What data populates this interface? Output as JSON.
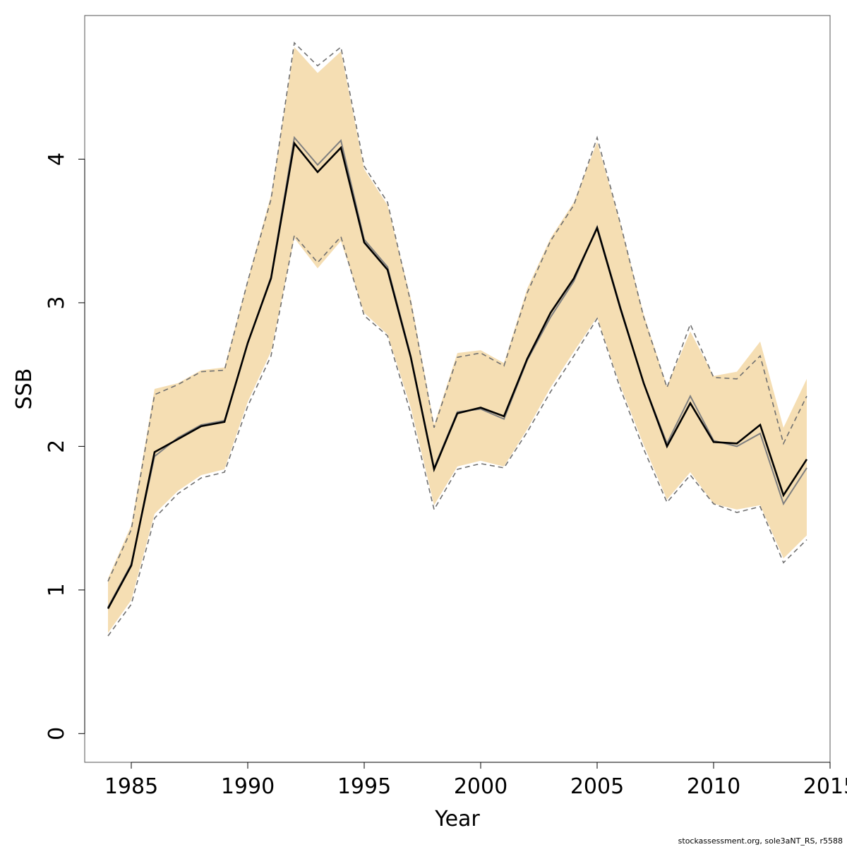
{
  "chart_data": {
    "type": "line",
    "xlabel": "Year",
    "ylabel": "SSB",
    "xlim": [
      1983,
      2015
    ],
    "ylim": [
      -0.2,
      5.0
    ],
    "x_ticks": [
      1985,
      1990,
      1995,
      2000,
      2005,
      2010,
      2015
    ],
    "y_ticks": [
      0,
      1,
      2,
      3,
      4
    ],
    "grid": false,
    "x": [
      1984,
      1985,
      1986,
      1987,
      1988,
      1989,
      1990,
      1991,
      1992,
      1993,
      1994,
      1995,
      1996,
      1997,
      1998,
      1999,
      2000,
      2001,
      2002,
      2003,
      2004,
      2005,
      2006,
      2007,
      2008,
      2009,
      2010,
      2011,
      2012,
      2013,
      2014
    ],
    "band": {
      "upper": [
        1.08,
        1.45,
        2.4,
        2.44,
        2.53,
        2.55,
        3.16,
        3.75,
        4.78,
        4.6,
        4.75,
        3.93,
        3.68,
        3.03,
        2.15,
        2.65,
        2.67,
        2.58,
        3.1,
        3.45,
        3.7,
        4.12,
        3.55,
        2.92,
        2.42,
        2.8,
        2.49,
        2.52,
        2.73,
        2.13,
        2.47
      ],
      "lower": [
        0.7,
        0.93,
        1.53,
        1.69,
        1.8,
        1.84,
        2.31,
        2.66,
        3.45,
        3.24,
        3.43,
        2.93,
        2.78,
        2.27,
        1.59,
        1.86,
        1.9,
        1.86,
        2.12,
        2.41,
        2.66,
        2.9,
        2.42,
        2.01,
        1.63,
        1.82,
        1.6,
        1.56,
        1.59,
        1.22,
        1.38
      ]
    },
    "series": [
      {
        "values": [
          0.87,
          1.17,
          1.96,
          2.05,
          2.14,
          2.17,
          2.72,
          3.17,
          4.11,
          3.91,
          4.08,
          3.42,
          3.23,
          2.62,
          1.84,
          2.23,
          2.27,
          2.21,
          2.61,
          2.93,
          3.17,
          3.52,
          2.96,
          2.44,
          2.0,
          2.3,
          2.03,
          2.02,
          2.15,
          1.66,
          1.91
        ]
      },
      {
        "values": [
          0.88,
          1.18,
          1.93,
          2.06,
          2.15,
          2.18,
          2.72,
          3.18,
          4.15,
          3.96,
          4.13,
          3.44,
          3.25,
          2.63,
          1.85,
          2.24,
          2.26,
          2.19,
          2.6,
          2.9,
          3.15,
          3.53,
          2.97,
          2.44,
          2.02,
          2.35,
          2.04,
          2.0,
          2.09,
          1.6,
          1.85
        ]
      }
    ],
    "ci_dashed": {
      "upper": [
        1.06,
        1.42,
        2.36,
        2.43,
        2.52,
        2.53,
        3.15,
        3.72,
        4.81,
        4.65,
        4.78,
        3.95,
        3.7,
        3.0,
        2.13,
        2.62,
        2.65,
        2.56,
        3.07,
        3.43,
        3.68,
        4.15,
        3.55,
        2.9,
        2.41,
        2.85,
        2.48,
        2.47,
        2.63,
        2.02,
        2.35
      ],
      "lower": [
        0.68,
        0.9,
        1.5,
        1.67,
        1.78,
        1.82,
        2.28,
        2.63,
        3.47,
        3.28,
        3.46,
        2.91,
        2.77,
        2.23,
        1.56,
        1.84,
        1.88,
        1.85,
        2.1,
        2.38,
        2.63,
        2.89,
        2.4,
        1.98,
        1.61,
        1.8,
        1.6,
        1.54,
        1.58,
        1.19,
        1.35
      ]
    },
    "colors": {
      "band": "#f5deb3",
      "main_line": "#000000",
      "second_line": "#808080",
      "dashed": "#707070",
      "axis": "#555555"
    }
  },
  "footer": "stockassessment.org, sole3aNT_RS, r5588"
}
